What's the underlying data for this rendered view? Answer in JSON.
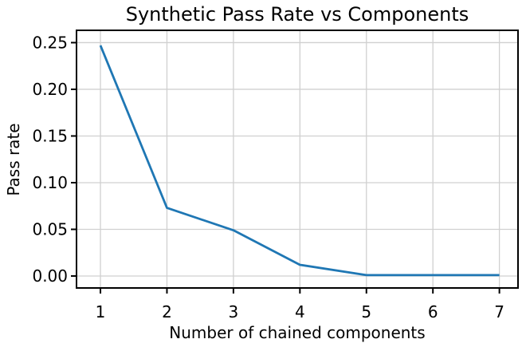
{
  "chart_data": {
    "type": "line",
    "title": "Synthetic Pass Rate vs Components",
    "xlabel": "Number of chained components",
    "ylabel": "Pass rate",
    "x": [
      1,
      2,
      3,
      4,
      5,
      6,
      7
    ],
    "values": [
      0.247,
      0.073,
      0.049,
      0.012,
      0.001,
      0.001,
      0.001
    ],
    "xtick_labels": [
      "1",
      "2",
      "3",
      "4",
      "5",
      "6",
      "7"
    ],
    "ytick_labels": [
      "0.00",
      "0.05",
      "0.10",
      "0.15",
      "0.20",
      "0.25"
    ],
    "xlim": [
      0.64,
      7.28
    ],
    "ylim": [
      -0.0128,
      0.2632
    ],
    "grid": true,
    "legend": false,
    "line_color": "#1f77b4",
    "grid_color": "#d0d0d0",
    "axis_color": "#000000",
    "text_color": "#000000",
    "background": "#ffffff"
  }
}
